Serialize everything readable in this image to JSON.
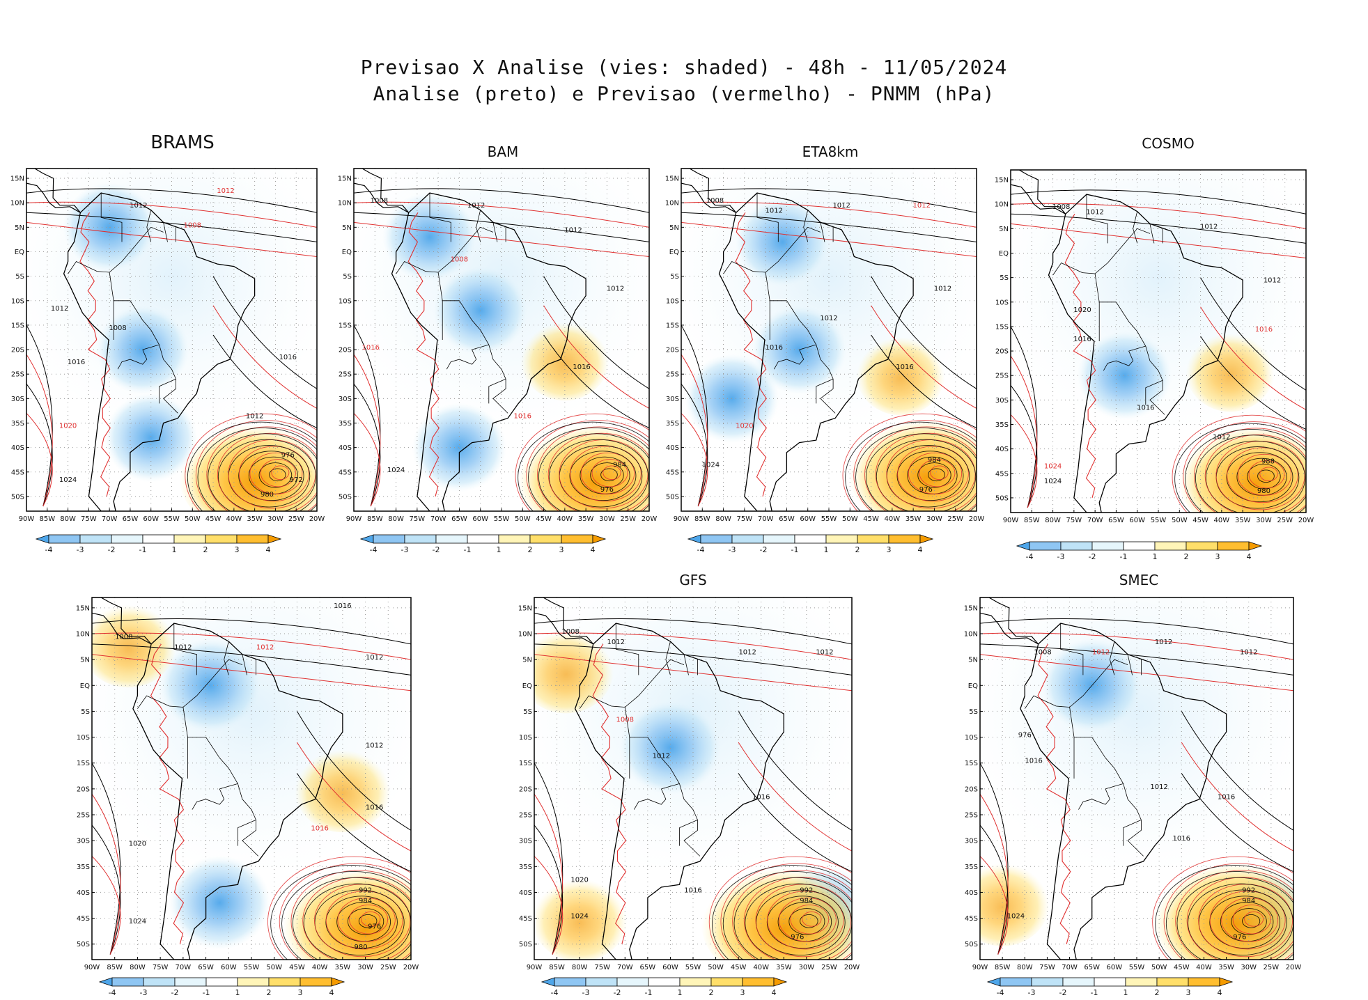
{
  "title": {
    "line1": "Previsao X Analise (vies: shaded) - 48h - 11/05/2024",
    "line2": "Analise (preto) e Previsao (vermelho) - PNMM (hPa)"
  },
  "axes": {
    "lat_labels": [
      "15N",
      "10N",
      "5N",
      "EQ",
      "5S",
      "10S",
      "15S",
      "20S",
      "25S",
      "30S",
      "35S",
      "40S",
      "45S",
      "50S"
    ],
    "lon_labels": [
      "90W",
      "85W",
      "80W",
      "75W",
      "70W",
      "65W",
      "60W",
      "55W",
      "50W",
      "45W",
      "40W",
      "35W",
      "30W",
      "25W",
      "20W"
    ],
    "lat_range": [
      17,
      -53
    ],
    "lon_range": [
      -90,
      -20
    ]
  },
  "colorbar": {
    "labels": [
      "-4",
      "-3",
      "-2",
      "-1",
      "1",
      "2",
      "3",
      "4"
    ],
    "colors": [
      "#4ea6ea",
      "#8fc6f3",
      "#bfe3f7",
      "#e6f6fc",
      "#ffffff",
      "#fff5b8",
      "#ffdf6a",
      "#ffbe30",
      "#f59b00"
    ]
  },
  "colors": {
    "analysis_contour": "#000000",
    "forecast_contour": "#e03030",
    "negative_bias": "#5aaeea",
    "positive_bias": "#ffc53a"
  },
  "panels": [
    {
      "name": "BRAMS",
      "blue": [
        [
          -70,
          5
        ],
        [
          -62,
          -20
        ],
        [
          -60,
          -38
        ]
      ],
      "orange": [
        [
          -35,
          -46
        ]
      ],
      "contours": [
        {
          "text": "1008",
          "lon": -50,
          "lat": 5,
          "c": "r"
        },
        {
          "text": "1012",
          "lon": -63,
          "lat": 9,
          "c": "k"
        },
        {
          "text": "1012",
          "lon": -42,
          "lat": 12,
          "c": "r"
        },
        {
          "text": "1012",
          "lon": -82,
          "lat": -12,
          "c": "k"
        },
        {
          "text": "1008",
          "lon": -68,
          "lat": -16,
          "c": "k"
        },
        {
          "text": "1016",
          "lon": -78,
          "lat": -23,
          "c": "k"
        },
        {
          "text": "1016",
          "lon": -27,
          "lat": -22,
          "c": "k"
        },
        {
          "text": "1020",
          "lon": -80,
          "lat": -36,
          "c": "r"
        },
        {
          "text": "1012",
          "lon": -35,
          "lat": -34,
          "c": "k"
        },
        {
          "text": "1024",
          "lon": -80,
          "lat": -47,
          "c": "k"
        },
        {
          "text": "976",
          "lon": -27,
          "lat": -42,
          "c": "k"
        },
        {
          "text": "972",
          "lon": -25,
          "lat": -47,
          "c": "k"
        },
        {
          "text": "980",
          "lon": -32,
          "lat": -50,
          "c": "k"
        }
      ]
    },
    {
      "name": "BAM",
      "blue": [
        [
          -72,
          3
        ],
        [
          -60,
          -12
        ],
        [
          -65,
          -40
        ]
      ],
      "orange": [
        [
          -33,
          -46
        ],
        [
          -40,
          -22
        ]
      ],
      "contours": [
        {
          "text": "1008",
          "lon": -84,
          "lat": 10,
          "c": "k"
        },
        {
          "text": "1012",
          "lon": -61,
          "lat": 9,
          "c": "k"
        },
        {
          "text": "1012",
          "lon": -38,
          "lat": 4,
          "c": "k"
        },
        {
          "text": "1008",
          "lon": -65,
          "lat": -2,
          "c": "r"
        },
        {
          "text": "1012",
          "lon": -28,
          "lat": -8,
          "c": "k"
        },
        {
          "text": "1016",
          "lon": -86,
          "lat": -20,
          "c": "r"
        },
        {
          "text": "1016",
          "lon": -36,
          "lat": -24,
          "c": "k"
        },
        {
          "text": "1016",
          "lon": -50,
          "lat": -34,
          "c": "r"
        },
        {
          "text": "1024",
          "lon": -80,
          "lat": -45,
          "c": "k"
        },
        {
          "text": "984",
          "lon": -27,
          "lat": -44,
          "c": "k"
        },
        {
          "text": "976",
          "lon": -30,
          "lat": -49,
          "c": "k"
        }
      ]
    },
    {
      "name": "ETA8km",
      "blue": [
        [
          -66,
          2
        ],
        [
          -62,
          -20
        ],
        [
          -78,
          -30
        ]
      ],
      "orange": [
        [
          -32,
          -45
        ],
        [
          -38,
          -25
        ]
      ],
      "contours": [
        {
          "text": "1008",
          "lon": -82,
          "lat": 10,
          "c": "k"
        },
        {
          "text": "1012",
          "lon": -68,
          "lat": 8,
          "c": "k"
        },
        {
          "text": "1012",
          "lon": -52,
          "lat": 9,
          "c": "k"
        },
        {
          "text": "1012",
          "lon": -33,
          "lat": 9,
          "c": "r"
        },
        {
          "text": "1012",
          "lon": -28,
          "lat": -8,
          "c": "k"
        },
        {
          "text": "1012",
          "lon": -55,
          "lat": -14,
          "c": "k"
        },
        {
          "text": "1016",
          "lon": -68,
          "lat": -20,
          "c": "k"
        },
        {
          "text": "1016",
          "lon": -37,
          "lat": -24,
          "c": "k"
        },
        {
          "text": "1020",
          "lon": -75,
          "lat": -36,
          "c": "r"
        },
        {
          "text": "1024",
          "lon": -83,
          "lat": -44,
          "c": "k"
        },
        {
          "text": "984",
          "lon": -30,
          "lat": -43,
          "c": "k"
        },
        {
          "text": "976",
          "lon": -32,
          "lat": -49,
          "c": "k"
        }
      ]
    },
    {
      "name": "COSMO",
      "blue": [
        [
          -63,
          -25
        ]
      ],
      "orange": [
        [
          -32,
          -46
        ],
        [
          -38,
          -24
        ]
      ],
      "contours": [
        {
          "text": "1008",
          "lon": -78,
          "lat": 9,
          "c": "k"
        },
        {
          "text": "1012",
          "lon": -70,
          "lat": 8,
          "c": "k"
        },
        {
          "text": "1012",
          "lon": -43,
          "lat": 5,
          "c": "k"
        },
        {
          "text": "1012",
          "lon": -28,
          "lat": -6,
          "c": "k"
        },
        {
          "text": "1016",
          "lon": -73,
          "lat": -18,
          "c": "k"
        },
        {
          "text": "1016",
          "lon": -30,
          "lat": -16,
          "c": "r"
        },
        {
          "text": "1020",
          "lon": -73,
          "lat": -12,
          "c": "k"
        },
        {
          "text": "1016",
          "lon": -58,
          "lat": -32,
          "c": "k"
        },
        {
          "text": "1012",
          "lon": -40,
          "lat": -38,
          "c": "k"
        },
        {
          "text": "1024",
          "lon": -80,
          "lat": -44,
          "c": "r"
        },
        {
          "text": "1024",
          "lon": -80,
          "lat": -47,
          "c": "k"
        },
        {
          "text": "988",
          "lon": -29,
          "lat": -43,
          "c": "k"
        },
        {
          "text": "980",
          "lon": -30,
          "lat": -49,
          "c": "k"
        }
      ]
    },
    {
      "name": "",
      "blue": [
        [
          -62,
          -42
        ],
        [
          -64,
          0
        ]
      ],
      "orange": [
        [
          -30,
          -46
        ],
        [
          -35,
          -20
        ],
        [
          -82,
          8
        ]
      ],
      "contours": [
        {
          "text": "1016",
          "lon": -35,
          "lat": 15,
          "c": "k"
        },
        {
          "text": "1008",
          "lon": -83,
          "lat": 9,
          "c": "k"
        },
        {
          "text": "1012",
          "lon": -70,
          "lat": 7,
          "c": "k"
        },
        {
          "text": "1012",
          "lon": -52,
          "lat": 7,
          "c": "r"
        },
        {
          "text": "1012",
          "lon": -28,
          "lat": 5,
          "c": "k"
        },
        {
          "text": "1012",
          "lon": -28,
          "lat": -12,
          "c": "k"
        },
        {
          "text": "1016",
          "lon": -28,
          "lat": -24,
          "c": "k"
        },
        {
          "text": "1020",
          "lon": -80,
          "lat": -31,
          "c": "k"
        },
        {
          "text": "1016",
          "lon": -40,
          "lat": -28,
          "c": "r"
        },
        {
          "text": "1024",
          "lon": -80,
          "lat": -46,
          "c": "k"
        },
        {
          "text": "992",
          "lon": -30,
          "lat": -40,
          "c": "k"
        },
        {
          "text": "984",
          "lon": -30,
          "lat": -42,
          "c": "k"
        },
        {
          "text": "976",
          "lon": -28,
          "lat": -47,
          "c": "k"
        },
        {
          "text": "980",
          "lon": -31,
          "lat": -51,
          "c": "k"
        }
      ]
    },
    {
      "name": "GFS",
      "blue": [
        [
          -60,
          -12
        ],
        [
          -26,
          -44
        ]
      ],
      "orange": [
        [
          -35,
          -46
        ],
        [
          -80,
          -45
        ],
        [
          -83,
          3
        ]
      ],
      "contours": [
        {
          "text": "1008",
          "lon": -82,
          "lat": 10,
          "c": "k"
        },
        {
          "text": "1012",
          "lon": -72,
          "lat": 8,
          "c": "k"
        },
        {
          "text": "1012",
          "lon": -43,
          "lat": 6,
          "c": "k"
        },
        {
          "text": "1012",
          "lon": -26,
          "lat": 6,
          "c": "k"
        },
        {
          "text": "1008",
          "lon": -70,
          "lat": -7,
          "c": "r"
        },
        {
          "text": "1012",
          "lon": -62,
          "lat": -14,
          "c": "k"
        },
        {
          "text": "1016",
          "lon": -40,
          "lat": -22,
          "c": "k"
        },
        {
          "text": "1020",
          "lon": -80,
          "lat": -38,
          "c": "k"
        },
        {
          "text": "1016",
          "lon": -55,
          "lat": -40,
          "c": "k"
        },
        {
          "text": "1024",
          "lon": -80,
          "lat": -45,
          "c": "k"
        },
        {
          "text": "992",
          "lon": -30,
          "lat": -40,
          "c": "k"
        },
        {
          "text": "984",
          "lon": -30,
          "lat": -42,
          "c": "k"
        },
        {
          "text": "976",
          "lon": -32,
          "lat": -49,
          "c": "k"
        }
      ]
    },
    {
      "name": "SMEC",
      "blue": [
        [
          -65,
          0
        ],
        [
          -26,
          -45
        ]
      ],
      "orange": [
        [
          -33,
          -45
        ],
        [
          -85,
          -42
        ]
      ],
      "contours": [
        {
          "text": "1008",
          "lon": -76,
          "lat": 6,
          "c": "k"
        },
        {
          "text": "1012",
          "lon": -63,
          "lat": 6,
          "c": "r"
        },
        {
          "text": "1012",
          "lon": -49,
          "lat": 8,
          "c": "k"
        },
        {
          "text": "1012",
          "lon": -30,
          "lat": 6,
          "c": "k"
        },
        {
          "text": "976",
          "lon": -80,
          "lat": -10,
          "c": "k"
        },
        {
          "text": "1016",
          "lon": -78,
          "lat": -15,
          "c": "k"
        },
        {
          "text": "1012",
          "lon": -50,
          "lat": -20,
          "c": "k"
        },
        {
          "text": "1016",
          "lon": -35,
          "lat": -22,
          "c": "k"
        },
        {
          "text": "1016",
          "lon": -45,
          "lat": -30,
          "c": "k"
        },
        {
          "text": "1024",
          "lon": -82,
          "lat": -45,
          "c": "k"
        },
        {
          "text": "992",
          "lon": -30,
          "lat": -40,
          "c": "k"
        },
        {
          "text": "984",
          "lon": -30,
          "lat": -42,
          "c": "k"
        },
        {
          "text": "976",
          "lon": -32,
          "lat": -49,
          "c": "k"
        }
      ]
    }
  ]
}
